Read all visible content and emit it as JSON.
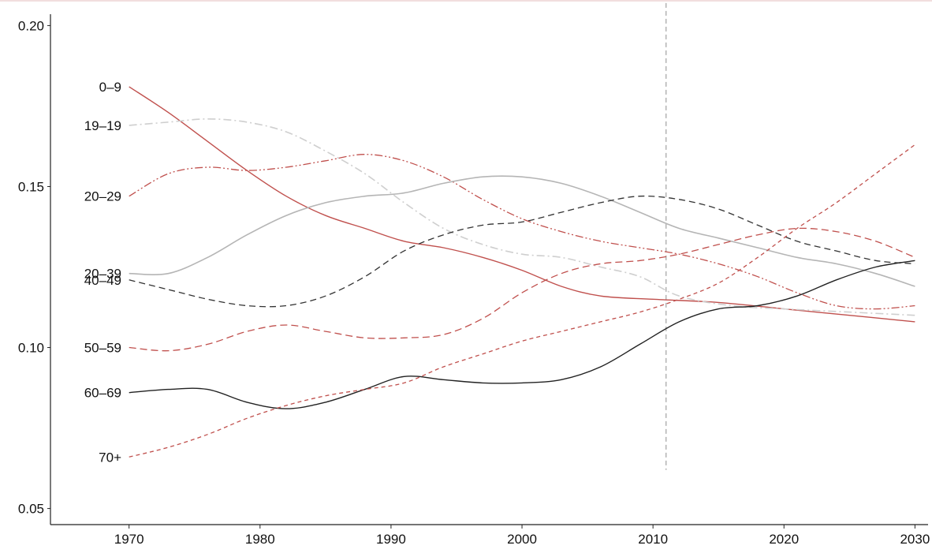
{
  "chart_data": {
    "type": "line",
    "title": "",
    "xlabel": "",
    "ylabel": "",
    "xlim": [
      1964,
      2031
    ],
    "ylim": [
      0.045,
      0.205
    ],
    "x_ticks": [
      1970,
      1980,
      1990,
      2000,
      2010,
      2020,
      2030
    ],
    "x_tick_labels": [
      "1970",
      "1980",
      "1990",
      "2000",
      "2010",
      "2020",
      "2030"
    ],
    "y_ticks": [
      0.05,
      0.1,
      0.15,
      0.2
    ],
    "y_tick_labels": [
      "0.05",
      "0.10",
      "0.15",
      "0.20"
    ],
    "grid": false,
    "legend": "none; series names printed at the left end of each line",
    "reference_line": {
      "x": 2011,
      "y_range": [
        0.062,
        0.207
      ],
      "style": "dashed",
      "color": "#999999"
    },
    "series": [
      {
        "name": "0–9",
        "color": "#c0504d",
        "dash": "",
        "width": 1.4,
        "points": [
          [
            1970,
            0.181
          ],
          [
            1973,
            0.173
          ],
          [
            1976,
            0.164
          ],
          [
            1979,
            0.155
          ],
          [
            1982,
            0.147
          ],
          [
            1985,
            0.141
          ],
          [
            1988,
            0.137
          ],
          [
            1991,
            0.133
          ],
          [
            1994,
            0.131
          ],
          [
            1997,
            0.128
          ],
          [
            2000,
            0.124
          ],
          [
            2003,
            0.119
          ],
          [
            2006,
            0.116
          ],
          [
            2010,
            0.115
          ],
          [
            2015,
            0.114
          ],
          [
            2020,
            0.112
          ],
          [
            2025,
            0.11
          ],
          [
            2030,
            0.108
          ]
        ]
      },
      {
        "name": "19–19",
        "color": "#cfcfcf",
        "dash": "10 4 2 4",
        "width": 1.6,
        "points": [
          [
            1970,
            0.169
          ],
          [
            1973,
            0.17
          ],
          [
            1976,
            0.171
          ],
          [
            1979,
            0.17
          ],
          [
            1982,
            0.167
          ],
          [
            1985,
            0.161
          ],
          [
            1988,
            0.154
          ],
          [
            1991,
            0.145
          ],
          [
            1994,
            0.137
          ],
          [
            1997,
            0.132
          ],
          [
            2000,
            0.129
          ],
          [
            2003,
            0.128
          ],
          [
            2006,
            0.125
          ],
          [
            2009,
            0.122
          ],
          [
            2012,
            0.116
          ],
          [
            2016,
            0.113
          ],
          [
            2020,
            0.112
          ],
          [
            2025,
            0.111
          ],
          [
            2030,
            0.11
          ]
        ]
      },
      {
        "name": "20–29",
        "color": "#c0504d",
        "dash": "10 3 2 3 2 3",
        "width": 1.3,
        "points": [
          [
            1970,
            0.147
          ],
          [
            1973,
            0.154
          ],
          [
            1976,
            0.156
          ],
          [
            1979,
            0.155
          ],
          [
            1982,
            0.156
          ],
          [
            1985,
            0.158
          ],
          [
            1988,
            0.16
          ],
          [
            1991,
            0.158
          ],
          [
            1994,
            0.153
          ],
          [
            1997,
            0.146
          ],
          [
            2000,
            0.14
          ],
          [
            2003,
            0.136
          ],
          [
            2006,
            0.133
          ],
          [
            2009,
            0.131
          ],
          [
            2012,
            0.129
          ],
          [
            2015,
            0.126
          ],
          [
            2018,
            0.122
          ],
          [
            2021,
            0.117
          ],
          [
            2024,
            0.113
          ],
          [
            2027,
            0.112
          ],
          [
            2030,
            0.113
          ]
        ]
      },
      {
        "name": "20–39",
        "color": "#b5b5b5",
        "dash": "",
        "width": 1.6,
        "points": [
          [
            1970,
            0.123
          ],
          [
            1973,
            0.123
          ],
          [
            1976,
            0.128
          ],
          [
            1979,
            0.135
          ],
          [
            1982,
            0.141
          ],
          [
            1985,
            0.145
          ],
          [
            1988,
            0.147
          ],
          [
            1991,
            0.148
          ],
          [
            1994,
            0.151
          ],
          [
            1997,
            0.153
          ],
          [
            2000,
            0.153
          ],
          [
            2003,
            0.151
          ],
          [
            2006,
            0.147
          ],
          [
            2009,
            0.142
          ],
          [
            2012,
            0.137
          ],
          [
            2015,
            0.134
          ],
          [
            2018,
            0.131
          ],
          [
            2021,
            0.128
          ],
          [
            2024,
            0.126
          ],
          [
            2027,
            0.123
          ],
          [
            2030,
            0.119
          ]
        ]
      },
      {
        "name": "40–49",
        "color": "#333333",
        "dash": "8 5",
        "width": 1.3,
        "points": [
          [
            1970,
            0.121
          ],
          [
            1973,
            0.118
          ],
          [
            1976,
            0.115
          ],
          [
            1979,
            0.113
          ],
          [
            1982,
            0.113
          ],
          [
            1985,
            0.116
          ],
          [
            1988,
            0.122
          ],
          [
            1991,
            0.13
          ],
          [
            1994,
            0.135
          ],
          [
            1997,
            0.138
          ],
          [
            2000,
            0.139
          ],
          [
            2003,
            0.142
          ],
          [
            2006,
            0.145
          ],
          [
            2009,
            0.147
          ],
          [
            2012,
            0.146
          ],
          [
            2015,
            0.143
          ],
          [
            2018,
            0.138
          ],
          [
            2021,
            0.133
          ],
          [
            2024,
            0.13
          ],
          [
            2027,
            0.127
          ],
          [
            2030,
            0.126
          ]
        ]
      },
      {
        "name": "50–59",
        "color": "#c0504d",
        "dash": "9 5",
        "width": 1.3,
        "points": [
          [
            1970,
            0.1
          ],
          [
            1973,
            0.099
          ],
          [
            1976,
            0.101
          ],
          [
            1979,
            0.105
          ],
          [
            1982,
            0.107
          ],
          [
            1985,
            0.105
          ],
          [
            1988,
            0.103
          ],
          [
            1991,
            0.103
          ],
          [
            1994,
            0.104
          ],
          [
            1997,
            0.109
          ],
          [
            2000,
            0.117
          ],
          [
            2003,
            0.123
          ],
          [
            2006,
            0.126
          ],
          [
            2009,
            0.127
          ],
          [
            2012,
            0.129
          ],
          [
            2015,
            0.132
          ],
          [
            2018,
            0.135
          ],
          [
            2021,
            0.137
          ],
          [
            2024,
            0.136
          ],
          [
            2027,
            0.133
          ],
          [
            2030,
            0.128
          ]
        ]
      },
      {
        "name": "60–69",
        "color": "#222222",
        "dash": "",
        "width": 1.4,
        "points": [
          [
            1970,
            0.086
          ],
          [
            1973,
            0.087
          ],
          [
            1976,
            0.087
          ],
          [
            1979,
            0.083
          ],
          [
            1982,
            0.081
          ],
          [
            1985,
            0.083
          ],
          [
            1988,
            0.087
          ],
          [
            1991,
            0.091
          ],
          [
            1994,
            0.09
          ],
          [
            1997,
            0.089
          ],
          [
            2000,
            0.089
          ],
          [
            2003,
            0.09
          ],
          [
            2006,
            0.094
          ],
          [
            2009,
            0.101
          ],
          [
            2012,
            0.108
          ],
          [
            2015,
            0.112
          ],
          [
            2018,
            0.113
          ],
          [
            2021,
            0.116
          ],
          [
            2024,
            0.121
          ],
          [
            2027,
            0.125
          ],
          [
            2030,
            0.127
          ]
        ]
      },
      {
        "name": "70+",
        "color": "#c0504d",
        "dash": "5 4",
        "width": 1.3,
        "points": [
          [
            1970,
            0.066
          ],
          [
            1973,
            0.069
          ],
          [
            1976,
            0.073
          ],
          [
            1979,
            0.078
          ],
          [
            1982,
            0.082
          ],
          [
            1985,
            0.085
          ],
          [
            1988,
            0.087
          ],
          [
            1991,
            0.089
          ],
          [
            1994,
            0.094
          ],
          [
            1997,
            0.098
          ],
          [
            2000,
            0.102
          ],
          [
            2003,
            0.105
          ],
          [
            2006,
            0.108
          ],
          [
            2009,
            0.111
          ],
          [
            2012,
            0.115
          ],
          [
            2015,
            0.12
          ],
          [
            2018,
            0.128
          ],
          [
            2021,
            0.137
          ],
          [
            2024,
            0.145
          ],
          [
            2027,
            0.154
          ],
          [
            2030,
            0.163
          ]
        ]
      }
    ]
  }
}
